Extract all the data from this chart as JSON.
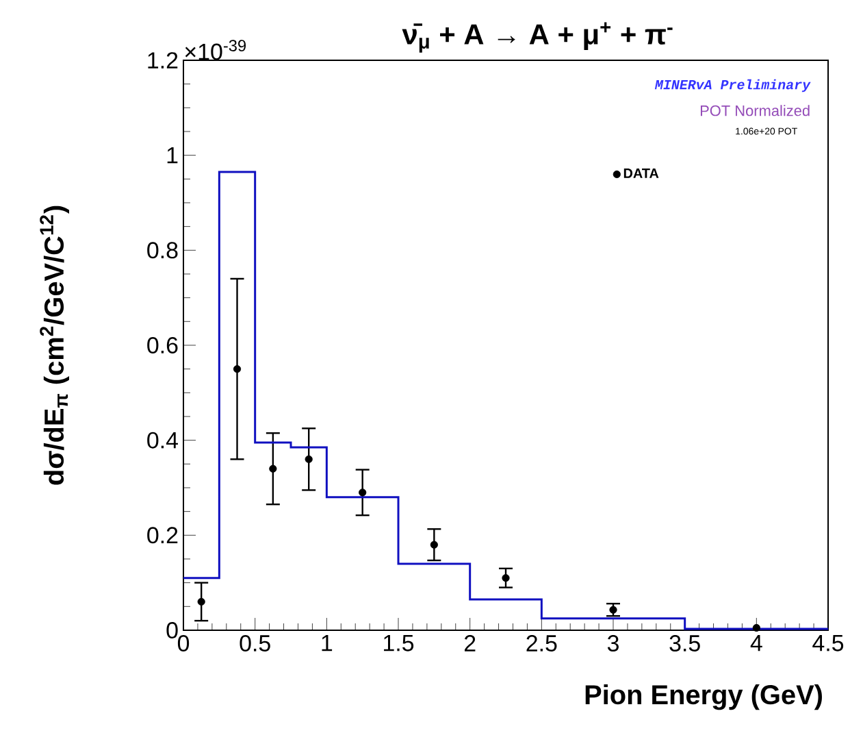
{
  "chart_data": {
    "type": "scatter",
    "title": "ν̄$_{μ}$ + A → A + μ$^{+}$ + π$^{-}$",
    "xlabel": "Pion Energy (GeV)",
    "ylabel": "dσ/dE$_{π}$ (cm$^{2}$/GeV/C$^{12}$)",
    "annotations": [
      "×10$^{-39}$",
      "MINERvA Preliminary",
      "POT Normalized",
      "1.06e+20 POT"
    ],
    "xlim": [
      0,
      4.5
    ],
    "ylim": [
      0,
      1.2
    ],
    "xticks": [
      0,
      0.5,
      1,
      1.5,
      2,
      2.5,
      3,
      3.5,
      4,
      4.5
    ],
    "yticks": [
      0,
      0.2,
      0.4,
      0.6,
      0.8,
      1,
      1.2
    ],
    "legend": "top right",
    "grid": false,
    "series": [
      {
        "name": "DATA",
        "color": "#000000",
        "x": [
          0.125,
          0.375,
          0.625,
          0.875,
          1.25,
          1.75,
          2.25,
          3,
          4
        ],
        "values": [
          0.06,
          0.55,
          0.34,
          0.36,
          0.29,
          0.18,
          0.11,
          0.043,
          0.005
        ],
        "errors": [
          0.04,
          0.19,
          0.075,
          0.065,
          0.048,
          0.033,
          0.02,
          0.013,
          null
        ]
      },
      {
        "type": "histogram",
        "color": "#1010c0",
        "bins": [
          0,
          0.25,
          0.5,
          0.75,
          1,
          1.5,
          2,
          2.5,
          3.5,
          4.5
        ],
        "values": [
          0.11,
          0.965,
          0.395,
          0.385,
          0.28,
          0.14,
          0.065,
          0.025,
          0.003
        ]
      }
    ]
  }
}
